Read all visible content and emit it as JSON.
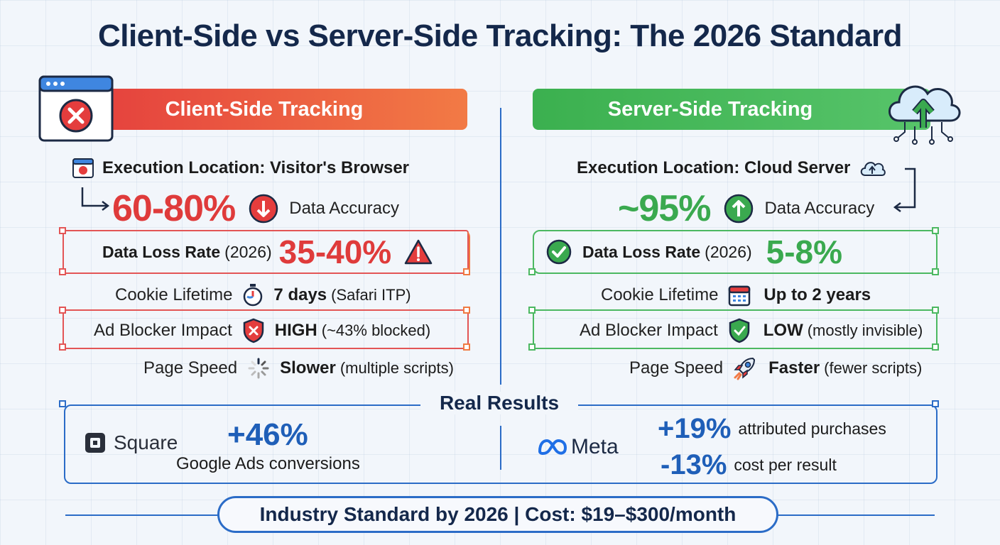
{
  "title": "Client-Side vs Server-Side Tracking: The 2026 Standard",
  "client": {
    "banner": "Client-Side Tracking",
    "execution": "Execution Location: Visitor's Browser",
    "accuracy_value": "60-80%",
    "accuracy_label": "Data Accuracy",
    "loss_label": "Data Loss Rate",
    "loss_year": "(2026)",
    "loss_value": "35-40%",
    "cookie_label": "Cookie Lifetime",
    "cookie_value": "7 days",
    "cookie_note": "(Safari ITP)",
    "adblock_label": "Ad Blocker Impact",
    "adblock_value": "HIGH",
    "adblock_note": "(~43% blocked)",
    "speed_label": "Page Speed",
    "speed_value": "Slower",
    "speed_note": "(multiple scripts)"
  },
  "server": {
    "banner": "Server-Side Tracking",
    "execution": "Execution Location: Cloud Server",
    "accuracy_value": "~95%",
    "accuracy_label": "Data Accuracy",
    "loss_label": "Data Loss Rate",
    "loss_year": "(2026)",
    "loss_value": "5-8%",
    "cookie_label": "Cookie Lifetime",
    "cookie_value": "Up to 2 years",
    "adblock_label": "Ad Blocker Impact",
    "adblock_value": "LOW",
    "adblock_note": "(mostly invisible)",
    "speed_label": "Page Speed",
    "speed_value": "Faster",
    "speed_note": "(fewer scripts)"
  },
  "results": {
    "title": "Real Results",
    "square": {
      "brand": "Square",
      "value": "+46%",
      "label": "Google Ads conversions"
    },
    "meta": {
      "brand": "Meta",
      "value1": "+19%",
      "label1": "attributed purchases",
      "value2": "-13%",
      "label2": "cost per result"
    }
  },
  "footer": "Industry Standard by 2026 | Cost: $19–$300/month",
  "colors": {
    "navy": "#14284b",
    "red": "#df3b3b",
    "orange": "#f27a45",
    "green": "#3aa94f",
    "blue": "#2b6cc7"
  },
  "icons": {
    "browser": "browser-error-icon",
    "cloud": "cloud-upload-icon",
    "timer": "stopwatch-icon",
    "calendar": "calendar-icon",
    "shield_bad": "shield-x-icon",
    "shield_good": "shield-check-icon",
    "spinner": "loading-spinner-icon",
    "rocket": "rocket-icon"
  }
}
